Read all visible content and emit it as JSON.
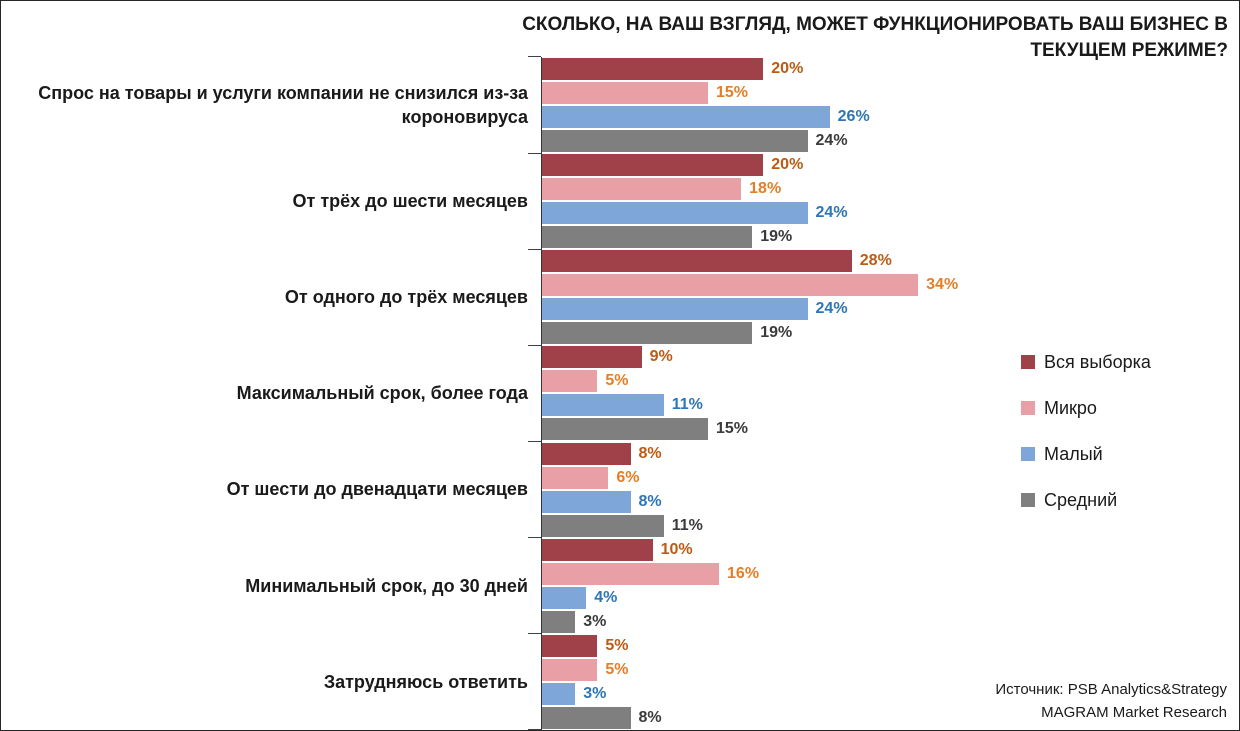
{
  "title": {
    "line1": "СКОЛЬКО, НА ВАШ ВЗГЛЯД, МОЖЕТ ФУНКЦИОНИРОВАТЬ ВАШ БИЗНЕС В",
    "line2": "ТЕКУЩЕМ РЕЖИМЕ?"
  },
  "source": {
    "line1": "Источник: PSB Analytics&Strategy",
    "line2": "MAGRAM Market Research"
  },
  "chart_data": {
    "type": "bar",
    "orientation": "horizontal",
    "title": "СКОЛЬКО, НА ВАШ ВЗГЛЯД, МОЖЕТ ФУНКЦИОНИРОВАТЬ ВАШ БИЗНЕС В ТЕКУЩЕМ РЕЖИМЕ?",
    "value_suffix": "%",
    "xlim": [
      0,
      63
    ],
    "legend_position": "right",
    "categories": [
      "Спрос на товары и услуги компании не снизился из-за короновируса",
      "От трёх до шести месяцев",
      "От одного до трёх месяцев",
      "Максимальный срок, более года",
      "От шести до двенадцати месяцев",
      "Минимальный срок, до 30 дней",
      "Затрудняюсь ответить"
    ],
    "series": [
      {
        "name": "Вся выборка",
        "color": "#A04149",
        "label_color": "#BE5A14",
        "values": [
          20,
          20,
          28,
          9,
          8,
          10,
          5
        ]
      },
      {
        "name": "Микро",
        "color": "#E8A0A6",
        "label_color": "#E57E26",
        "values": [
          15,
          18,
          34,
          5,
          6,
          16,
          5
        ]
      },
      {
        "name": "Малый",
        "color": "#7EA6D8",
        "label_color": "#2E75B6",
        "values": [
          26,
          24,
          24,
          11,
          8,
          4,
          3
        ]
      },
      {
        "name": "Средний",
        "color": "#7F7F7F",
        "label_color": "#3B3B3B",
        "values": [
          24,
          19,
          19,
          15,
          11,
          3,
          8
        ]
      }
    ]
  }
}
